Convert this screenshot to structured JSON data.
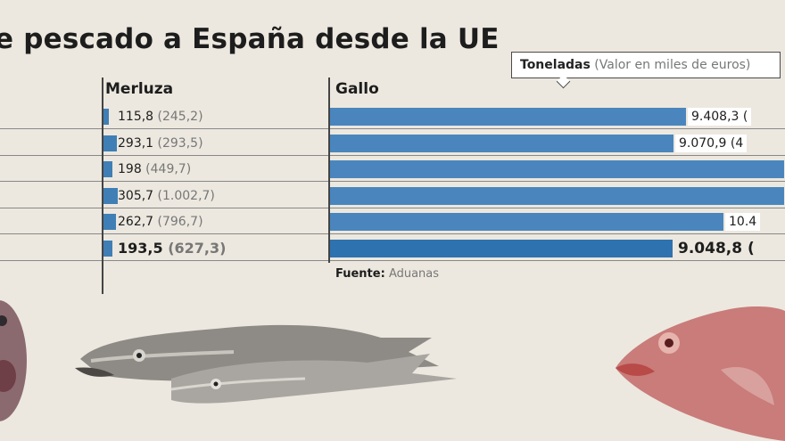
{
  "header": {
    "title": "e pescado a España desde la UE"
  },
  "legend": {
    "tons_label": "Toneladas",
    "value_label": "(Valor en miles de euros)"
  },
  "source": {
    "label": "Fuente:",
    "value": "Aduanas"
  },
  "chart_data": [
    {
      "type": "bar",
      "orientation": "horizontal",
      "title": "Merluza",
      "unit": "Toneladas (Valor en miles de euros)",
      "rows": [
        {
          "tons": 115.8,
          "tons_text": "115,8",
          "value_text": "(245,2)"
        },
        {
          "tons": 293.1,
          "tons_text": "293,1",
          "value_text": "(293,5)"
        },
        {
          "tons": 198,
          "tons_text": "198",
          "value_text": "(449,7)"
        },
        {
          "tons": 305.7,
          "tons_text": "305,7",
          "value_text": "(1.002,7)"
        },
        {
          "tons": 262.7,
          "tons_text": "262,7",
          "value_text": "(796,7)"
        },
        {
          "tons": 193.5,
          "tons_text": "193,5",
          "value_text": "(627,3)",
          "highlight": true
        }
      ]
    },
    {
      "type": "bar",
      "orientation": "horizontal",
      "title": "Gallo",
      "unit": "Toneladas (Valor en miles de euros)",
      "rows": [
        {
          "tons": 9408.3,
          "tons_text": "9.408,3 (",
          "value_text": "",
          "label_visible": true
        },
        {
          "tons": 9070.9,
          "tons_text": "9.070,9 (4",
          "value_text": "",
          "label_visible": true
        },
        {
          "tons": 12000,
          "tons_text": "",
          "value_text": "",
          "label_visible": false
        },
        {
          "tons": 12000,
          "tons_text": "",
          "value_text": "",
          "label_visible": false
        },
        {
          "tons": 10400,
          "tons_text": "10.4",
          "value_text": "",
          "label_visible": true
        },
        {
          "tons": 9048.8,
          "tons_text": "9.048,8 (",
          "value_text": "",
          "label_visible": true,
          "highlight": true
        }
      ]
    }
  ]
}
